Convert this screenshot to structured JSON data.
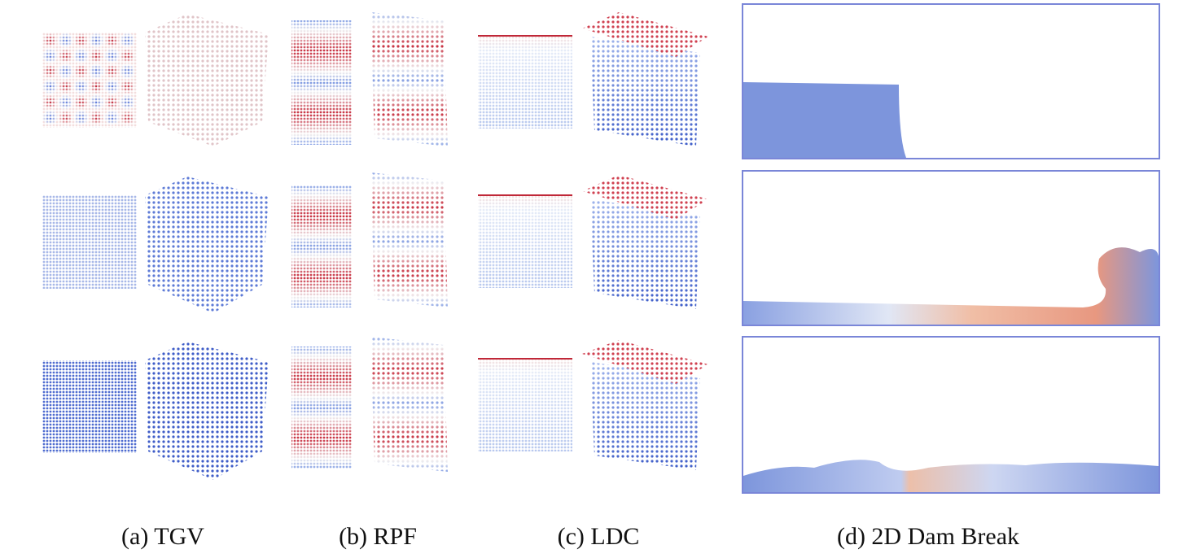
{
  "captions": [
    "(a) TGV",
    "(b) RPF",
    "(c) LDC",
    "(d) 2D Dam Break"
  ]
}
